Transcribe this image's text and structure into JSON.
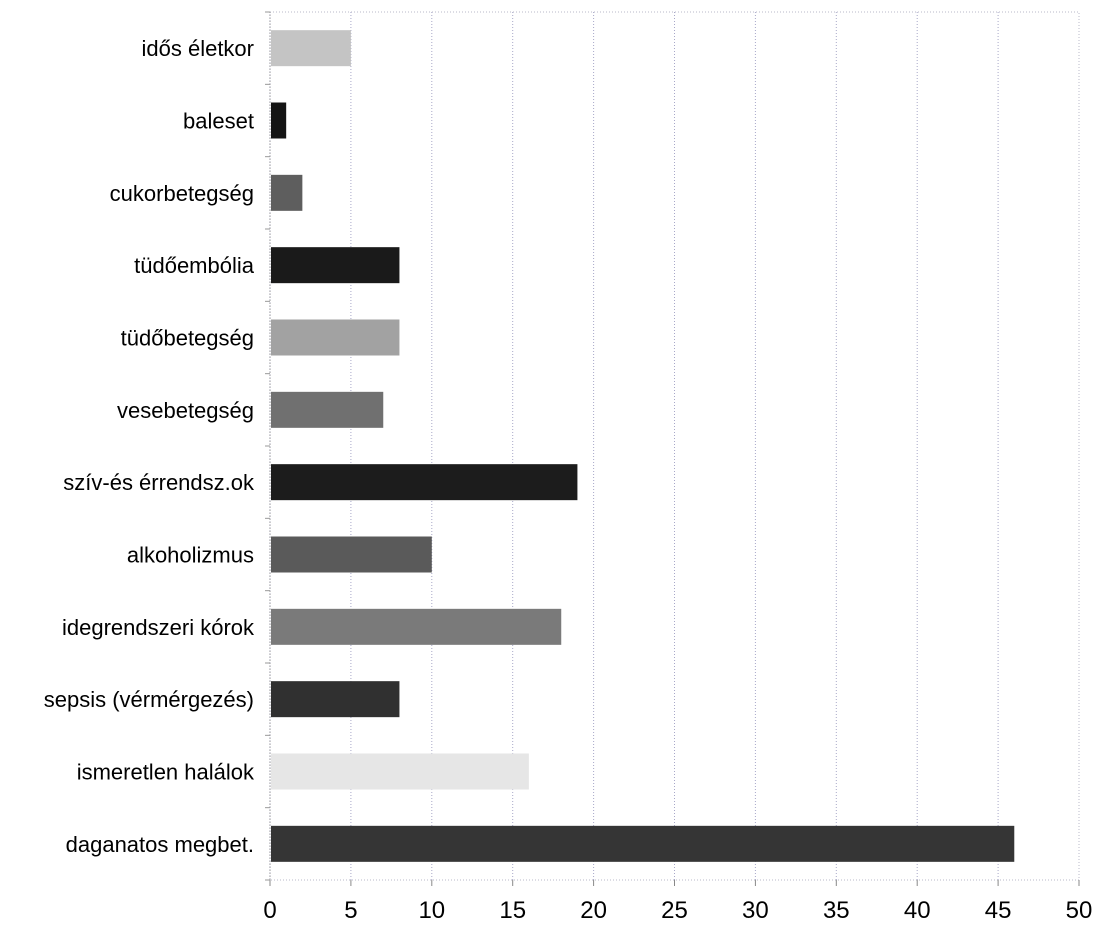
{
  "chart_data": {
    "type": "bar",
    "orientation": "horizontal",
    "categories": [
      "idős életkor",
      "baleset",
      "cukorbetegség",
      "tüdőembólia",
      "tüdőbetegség",
      "vesebetegség",
      "szív-és érrendsz.ok",
      "alkoholizmus",
      "idegrendszeri kórok",
      "sepsis (vérmérgezés)",
      "ismeretlen halálok",
      "daganatos megbet."
    ],
    "values": [
      5,
      1,
      2,
      8,
      8,
      7,
      19,
      10,
      18,
      8,
      16,
      46
    ],
    "bar_colors": [
      "#c4c4c4",
      "#141414",
      "#5e5e5e",
      "#1a1a1a",
      "#a2a2a2",
      "#707070",
      "#1c1c1c",
      "#5a5a5a",
      "#7a7a7a",
      "#303030",
      "#e6e6e6",
      "#353535"
    ],
    "xlim": [
      0,
      50
    ],
    "x_ticks": [
      "0",
      "5",
      "10",
      "15",
      "20",
      "25",
      "30",
      "35",
      "40",
      "45",
      "50"
    ],
    "grid": true,
    "legend": "none"
  }
}
